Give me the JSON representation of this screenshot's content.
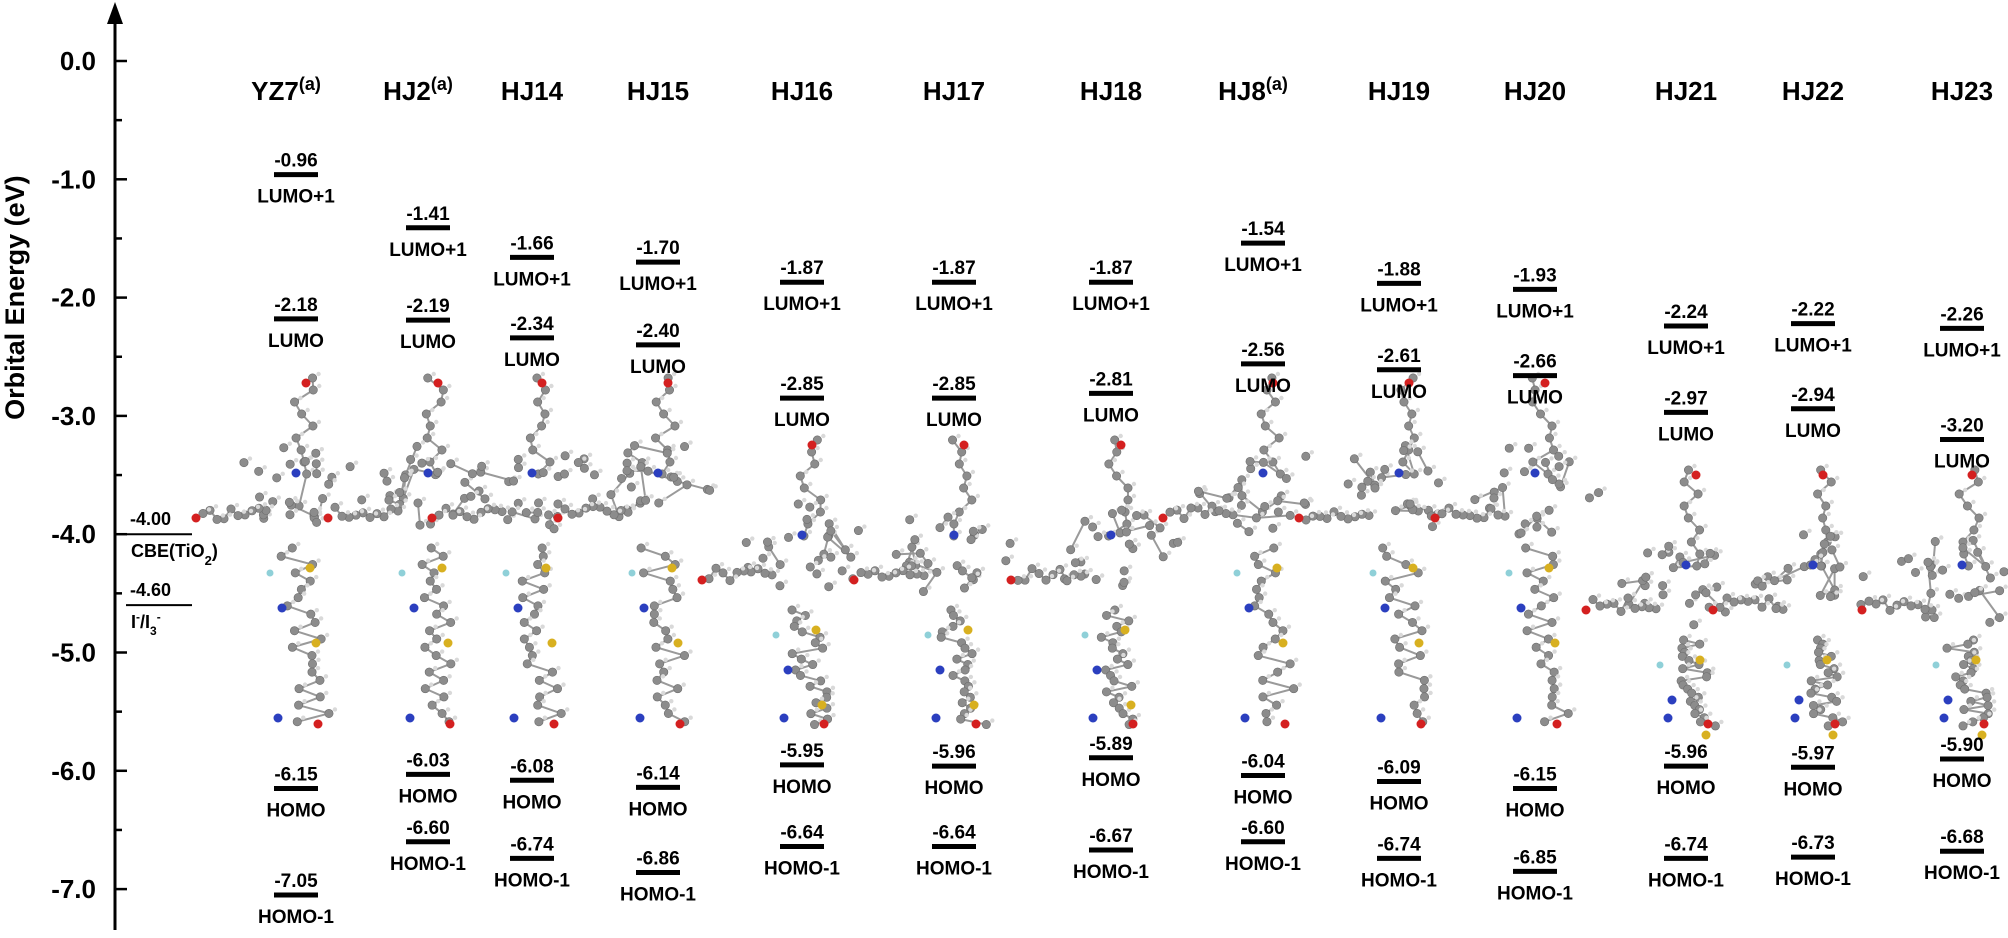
{
  "chart_data": {
    "type": "energy-level-diagram",
    "title": "",
    "ylabel": "Orbital Energy (eV)",
    "ylim": [
      -7.4,
      0.5
    ],
    "yticks": [
      {
        "value": 0,
        "label": "0.0"
      },
      {
        "value": -1,
        "label": "-1.0"
      },
      {
        "value": -2,
        "label": "-2.0"
      },
      {
        "value": -3,
        "label": "-3.0"
      },
      {
        "value": -4,
        "label": "-4.0"
      },
      {
        "value": -5,
        "label": "-5.0"
      },
      {
        "value": -6,
        "label": "-6.0"
      },
      {
        "value": -7,
        "label": "-7.0"
      }
    ],
    "reference_levels": [
      {
        "value": -4.0,
        "value_label": "-4.00",
        "name": "CBE(TiO",
        "sub": "2",
        "sup": "",
        "tail": ")"
      },
      {
        "value": -4.6,
        "value_label": "-4.60",
        "name": "I",
        "sup": "-",
        "mid": "/I",
        "sub": "3",
        "sup2": "-"
      }
    ],
    "series": [
      {
        "name": "YZ7",
        "note": "(a)",
        "levels": [
          {
            "orbital": "LUMO+1",
            "value": -0.96,
            "label": "-0.96"
          },
          {
            "orbital": "LUMO",
            "value": -2.18,
            "label": "-2.18"
          },
          {
            "orbital": "HOMO",
            "value": -6.15,
            "label": "-6.15"
          },
          {
            "orbital": "HOMO-1",
            "value": -7.05,
            "label": "-7.05"
          }
        ]
      },
      {
        "name": "HJ2",
        "note": "(a)",
        "levels": [
          {
            "orbital": "LUMO+1",
            "value": -1.41,
            "label": "-1.41"
          },
          {
            "orbital": "LUMO",
            "value": -2.19,
            "label": "-2.19"
          },
          {
            "orbital": "HOMO",
            "value": -6.03,
            "label": "-6.03"
          },
          {
            "orbital": "HOMO-1",
            "value": -6.6,
            "label": "-6.60"
          }
        ]
      },
      {
        "name": "HJ14",
        "note": "",
        "levels": [
          {
            "orbital": "LUMO+1",
            "value": -1.66,
            "label": "-1.66"
          },
          {
            "orbital": "LUMO",
            "value": -2.34,
            "label": "-2.34"
          },
          {
            "orbital": "HOMO",
            "value": -6.08,
            "label": "-6.08"
          },
          {
            "orbital": "HOMO-1",
            "value": -6.74,
            "label": "-6.74"
          }
        ]
      },
      {
        "name": "HJ15",
        "note": "",
        "levels": [
          {
            "orbital": "LUMO+1",
            "value": -1.7,
            "label": "-1.70"
          },
          {
            "orbital": "LUMO",
            "value": -2.4,
            "label": "-2.40"
          },
          {
            "orbital": "HOMO",
            "value": -6.14,
            "label": "-6.14"
          },
          {
            "orbital": "HOMO-1",
            "value": -6.86,
            "label": "-6.86"
          }
        ]
      },
      {
        "name": "HJ16",
        "note": "",
        "levels": [
          {
            "orbital": "LUMO+1",
            "value": -1.87,
            "label": "-1.87"
          },
          {
            "orbital": "LUMO",
            "value": -2.85,
            "label": "-2.85"
          },
          {
            "orbital": "HOMO",
            "value": -5.95,
            "label": "-5.95"
          },
          {
            "orbital": "HOMO-1",
            "value": -6.64,
            "label": "-6.64"
          }
        ]
      },
      {
        "name": "HJ17",
        "note": "",
        "levels": [
          {
            "orbital": "LUMO+1",
            "value": -1.87,
            "label": "-1.87"
          },
          {
            "orbital": "LUMO",
            "value": -2.85,
            "label": "-2.85"
          },
          {
            "orbital": "HOMO",
            "value": -5.96,
            "label": "-5.96"
          },
          {
            "orbital": "HOMO-1",
            "value": -6.64,
            "label": "-6.64"
          }
        ]
      },
      {
        "name": "HJ18",
        "note": "",
        "levels": [
          {
            "orbital": "LUMO+1",
            "value": -1.87,
            "label": "-1.87"
          },
          {
            "orbital": "LUMO",
            "value": -2.81,
            "label": "-2.81"
          },
          {
            "orbital": "HOMO",
            "value": -5.89,
            "label": "-5.89"
          },
          {
            "orbital": "HOMO-1",
            "value": -6.67,
            "label": "-6.67"
          }
        ]
      },
      {
        "name": "HJ8",
        "note": "(a)",
        "levels": [
          {
            "orbital": "LUMO+1",
            "value": -1.54,
            "label": "-1.54"
          },
          {
            "orbital": "LUMO",
            "value": -2.56,
            "label": "-2.56"
          },
          {
            "orbital": "HOMO",
            "value": -6.04,
            "label": "-6.04"
          },
          {
            "orbital": "HOMO-1",
            "value": -6.6,
            "label": "-6.60"
          }
        ]
      },
      {
        "name": "HJ19",
        "note": "",
        "levels": [
          {
            "orbital": "LUMO+1",
            "value": -1.88,
            "label": "-1.88"
          },
          {
            "orbital": "LUMO",
            "value": -2.61,
            "label": "-2.61"
          },
          {
            "orbital": "HOMO",
            "value": -6.09,
            "label": "-6.09"
          },
          {
            "orbital": "HOMO-1",
            "value": -6.74,
            "label": "-6.74"
          }
        ]
      },
      {
        "name": "HJ20",
        "note": "",
        "levels": [
          {
            "orbital": "LUMO+1",
            "value": -1.93,
            "label": "-1.93"
          },
          {
            "orbital": "LUMO",
            "value": -2.66,
            "label": "-2.66"
          },
          {
            "orbital": "HOMO",
            "value": -6.15,
            "label": "-6.15"
          },
          {
            "orbital": "HOMO-1",
            "value": -6.85,
            "label": "-6.85"
          }
        ]
      },
      {
        "name": "HJ21",
        "note": "",
        "levels": [
          {
            "orbital": "LUMO+1",
            "value": -2.24,
            "label": "-2.24"
          },
          {
            "orbital": "LUMO",
            "value": -2.97,
            "label": "-2.97"
          },
          {
            "orbital": "HOMO",
            "value": -5.96,
            "label": "-5.96"
          },
          {
            "orbital": "HOMO-1",
            "value": -6.74,
            "label": "-6.74"
          }
        ]
      },
      {
        "name": "HJ22",
        "note": "",
        "levels": [
          {
            "orbital": "LUMO+1",
            "value": -2.22,
            "label": "-2.22"
          },
          {
            "orbital": "LUMO",
            "value": -2.94,
            "label": "-2.94"
          },
          {
            "orbital": "HOMO",
            "value": -5.97,
            "label": "-5.97"
          },
          {
            "orbital": "HOMO-1",
            "value": -6.73,
            "label": "-6.73"
          }
        ]
      },
      {
        "name": "HJ23",
        "note": "",
        "levels": [
          {
            "orbital": "LUMO+1",
            "value": -2.26,
            "label": "-2.26"
          },
          {
            "orbital": "LUMO",
            "value": -3.2,
            "label": "-3.20"
          },
          {
            "orbital": "HOMO",
            "value": -5.9,
            "label": "-5.90"
          },
          {
            "orbital": "HOMO-1",
            "value": -6.68,
            "label": "-6.68"
          }
        ]
      }
    ],
    "grid": false,
    "legend": "none"
  },
  "colors": {
    "ink": "#000000",
    "carbon": "#8c8c8c",
    "hydrogen": "#d9d9d9",
    "nitrogen": "#2b3fbf",
    "oxygen": "#d42020",
    "sulfur": "#d8b020",
    "fluorine": "#8fd0d8"
  }
}
